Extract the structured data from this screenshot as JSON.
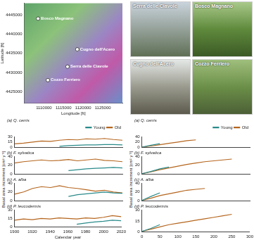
{
  "photos": [
    {
      "caption": "Serra delle Ciavole"
    },
    {
      "caption": "Bosco Magnano"
    },
    {
      "caption": "Cugno dell'Acero"
    },
    {
      "caption": "Cozzo Ferriero"
    }
  ],
  "shared_ylabels": [
    "Basal area increment [cm² y⁻¹]",
    "Basal area increment [cm² y⁻¹]"
  ],
  "chart_data": [
    {
      "type": "scatter",
      "xlabel": "Longitude [ft]",
      "ylabel": "Latitude [ft]",
      "color": "#ffffff",
      "points": [
        {
          "label": "Bosco Magnano",
          "x": 1108500,
          "y": 4444000
        },
        {
          "label": "Cugno dell'Acero",
          "x": 1118500,
          "y": 4436000
        },
        {
          "label": "Serra delle Ciavole",
          "x": 1116000,
          "y": 4431500
        },
        {
          "label": "Cozzo Ferriero",
          "x": 1111000,
          "y": 4428000
        }
      ],
      "xlim": [
        1105000,
        1130000
      ],
      "xticks": [
        1110000,
        1115000,
        1120000,
        1125000
      ],
      "ylim": [
        4422000,
        4448000
      ],
      "yticks": [
        4425000,
        4430000,
        4435000,
        4440000,
        4445000
      ],
      "grid": false
    },
    {
      "type": "line",
      "title": "(a) Q. cerris",
      "legend": "top",
      "tick_labels": "y",
      "grid": false,
      "x": [
        1900,
        1910,
        1920,
        1930,
        1940,
        1950,
        1960,
        1970,
        1980,
        1990,
        2000,
        2010,
        2020
      ],
      "series": [
        {
          "name": "Young",
          "color": "#2a8a8a",
          "values": [
            null,
            null,
            null,
            null,
            null,
            3,
            5,
            6,
            7,
            7,
            8,
            8,
            7
          ]
        },
        {
          "name": "Old",
          "color": "#b5651d",
          "values": [
            10,
            12,
            15,
            18,
            17,
            20,
            22,
            21,
            24,
            23,
            25,
            22,
            20
          ]
        }
      ],
      "xlim": [
        1900,
        2020
      ],
      "xticks": [
        1900,
        1920,
        1940,
        1960,
        1980,
        2000,
        2020
      ],
      "ylim": [
        0,
        30
      ],
      "yticks": [
        0,
        15,
        30
      ]
    },
    {
      "type": "line",
      "title": "(b) F. sylvatica",
      "tick_labels": "y",
      "grid": false,
      "x": [
        1900,
        1910,
        1920,
        1930,
        1940,
        1950,
        1960,
        1970,
        1980,
        1990,
        2000,
        2010,
        2020
      ],
      "series": [
        {
          "name": "Young",
          "color": "#2a8a8a",
          "values": [
            null,
            null,
            null,
            null,
            null,
            null,
            8,
            10,
            12,
            13,
            14,
            15,
            14
          ]
        },
        {
          "name": "Old",
          "color": "#b5651d",
          "values": [
            25,
            28,
            30,
            32,
            30,
            31,
            33,
            30,
            32,
            34,
            31,
            30,
            28
          ]
        }
      ],
      "xlim": [
        1900,
        2020
      ],
      "xticks": [
        1900,
        1920,
        1940,
        1960,
        1980,
        2000,
        2020
      ],
      "ylim": [
        0,
        40
      ],
      "yticks": [
        0,
        20,
        40
      ]
    },
    {
      "type": "line",
      "title": "(c) A. alba",
      "tick_labels": "y",
      "grid": false,
      "x": [
        1900,
        1910,
        1920,
        1930,
        1940,
        1950,
        1960,
        1970,
        1980,
        1990,
        2000,
        2010,
        2020
      ],
      "series": [
        {
          "name": "Young",
          "color": "#2a8a8a",
          "values": [
            null,
            null,
            null,
            null,
            null,
            null,
            10,
            14,
            16,
            18,
            20,
            18,
            17
          ]
        },
        {
          "name": "Old",
          "color": "#b5651d",
          "values": [
            15,
            20,
            28,
            32,
            30,
            34,
            30,
            28,
            25,
            22,
            24,
            20,
            18
          ]
        }
      ],
      "xlim": [
        1900,
        2020
      ],
      "xticks": [
        1900,
        1920,
        1940,
        1960,
        1980,
        2000,
        2020
      ],
      "ylim": [
        0,
        40
      ],
      "yticks": [
        0,
        20,
        40
      ]
    },
    {
      "type": "line",
      "title": "(d) P. leucodermis",
      "xlabel": "Calendar year",
      "grid": false,
      "x": [
        1900,
        1910,
        1920,
        1930,
        1940,
        1950,
        1960,
        1970,
        1980,
        1990,
        2000,
        2010,
        2020
      ],
      "series": [
        {
          "name": "Young",
          "color": "#2a8a8a",
          "values": [
            null,
            null,
            null,
            null,
            null,
            null,
            null,
            5,
            7,
            9,
            10,
            12,
            11
          ]
        },
        {
          "name": "Old",
          "color": "#b5651d",
          "values": [
            12,
            14,
            13,
            15,
            14,
            16,
            15,
            14,
            16,
            15,
            17,
            20,
            18
          ]
        }
      ],
      "xlim": [
        1900,
        2020
      ],
      "xticks": [
        1900,
        1920,
        1940,
        1960,
        1980,
        2000,
        2020
      ],
      "ylim": [
        0,
        30
      ],
      "yticks": [
        0,
        15,
        30
      ]
    },
    {
      "type": "line",
      "title": "(a) Q. cerris",
      "legend": "top",
      "tick_labels": "y",
      "grid": false,
      "x": [
        0,
        25,
        50,
        75,
        100,
        125,
        150,
        175,
        200,
        225,
        250,
        275,
        300
      ],
      "series": [
        {
          "name": "Young",
          "color": "#2a8a8a",
          "values": [
            1,
            8,
            14,
            null,
            null,
            null,
            null,
            null,
            null,
            null,
            null,
            null,
            null
          ]
        },
        {
          "name": "Old",
          "color": "#b5651d",
          "values": [
            1,
            5,
            10,
            15,
            20,
            25,
            28,
            null,
            null,
            null,
            null,
            null,
            null
          ]
        }
      ],
      "xlim": [
        0,
        300
      ],
      "xticks": [
        0,
        50,
        100,
        150,
        200,
        250,
        300
      ],
      "ylim": [
        0,
        40
      ],
      "yticks": [
        0,
        20,
        40
      ]
    },
    {
      "type": "line",
      "title": "(b) F. sylvatica",
      "tick_labels": "y",
      "grid": false,
      "x": [
        0,
        25,
        50,
        75,
        100,
        125,
        150,
        175,
        200,
        225,
        250,
        275,
        300
      ],
      "series": [
        {
          "name": "Young",
          "color": "#2a8a8a",
          "values": [
            1,
            6,
            12,
            16,
            null,
            null,
            null,
            null,
            null,
            null,
            null,
            null,
            null
          ]
        },
        {
          "name": "Old",
          "color": "#b5651d",
          "values": [
            1,
            5,
            10,
            14,
            18,
            22,
            25,
            28,
            30,
            32,
            34,
            null,
            null
          ]
        }
      ],
      "xlim": [
        0,
        300
      ],
      "xticks": [
        0,
        50,
        100,
        150,
        200,
        250,
        300
      ],
      "ylim": [
        0,
        40
      ],
      "yticks": [
        0,
        20,
        40
      ]
    },
    {
      "type": "line",
      "title": "(c) A. alba",
      "tick_labels": "y",
      "grid": false,
      "x": [
        0,
        25,
        50,
        75,
        100,
        125,
        150,
        175,
        200,
        225,
        250,
        275,
        300
      ],
      "series": [
        {
          "name": "Young",
          "color": "#2a8a8a",
          "values": [
            1,
            10,
            18,
            null,
            null,
            null,
            null,
            null,
            null,
            null,
            null,
            null,
            null
          ]
        },
        {
          "name": "Old",
          "color": "#b5651d",
          "values": [
            1,
            6,
            12,
            16,
            20,
            24,
            26,
            28,
            null,
            null,
            null,
            null,
            null
          ]
        }
      ],
      "xlim": [
        0,
        300
      ],
      "xticks": [
        0,
        50,
        100,
        150,
        200,
        250,
        300
      ],
      "ylim": [
        0,
        40
      ],
      "yticks": [
        0,
        20,
        40
      ]
    },
    {
      "type": "line",
      "title": "(d) P. leucodermis",
      "grid": false,
      "x": [
        0,
        25,
        50,
        75,
        100,
        125,
        150,
        175,
        200,
        225,
        250,
        275,
        300
      ],
      "series": [
        {
          "name": "Young",
          "color": "#2a8a8a",
          "values": [
            1,
            5,
            10,
            null,
            null,
            null,
            null,
            null,
            null,
            null,
            null,
            null,
            null
          ]
        },
        {
          "name": "Old",
          "color": "#b5651d",
          "values": [
            1,
            4,
            7,
            10,
            12,
            14,
            16,
            18,
            20,
            22,
            24,
            null,
            null
          ]
        }
      ],
      "xlim": [
        0,
        300
      ],
      "xticks": [
        0,
        50,
        100,
        150,
        200,
        250,
        300
      ],
      "ylim": [
        0,
        30
      ],
      "yticks": [
        0,
        15,
        30
      ]
    }
  ]
}
